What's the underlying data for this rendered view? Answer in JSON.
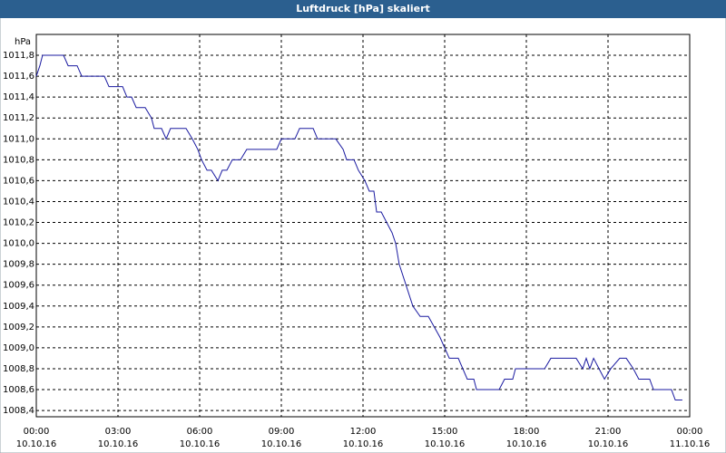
{
  "chart_data": {
    "type": "line",
    "title": "Luftdruck [hPa] skaliert",
    "ylabel": "hPa",
    "xlim": [
      0,
      24
    ],
    "ylim": [
      1008.34,
      1012.0
    ],
    "grid": true,
    "xticks": [
      {
        "value": 0,
        "label": "00:00"
      },
      {
        "value": 3,
        "label": "03:00"
      },
      {
        "value": 6,
        "label": "06:00"
      },
      {
        "value": 9,
        "label": "09:00"
      },
      {
        "value": 12,
        "label": "12:00"
      },
      {
        "value": 15,
        "label": "15:00"
      },
      {
        "value": 18,
        "label": "18:00"
      },
      {
        "value": 21,
        "label": "21:00"
      },
      {
        "value": 24,
        "label": "00:00"
      }
    ],
    "xtick_dates": [
      "10.10.16",
      "10.10.16",
      "10.10.16",
      "10.10.16",
      "10.10.16",
      "10.10.16",
      "10.10.16",
      "10.10.16",
      "11.10.16"
    ],
    "yticks": [
      {
        "value": 1008.4,
        "label": "1008,4"
      },
      {
        "value": 1008.6,
        "label": "1008,6"
      },
      {
        "value": 1008.8,
        "label": "1008,8"
      },
      {
        "value": 1009.0,
        "label": "1009,0"
      },
      {
        "value": 1009.2,
        "label": "1009,2"
      },
      {
        "value": 1009.4,
        "label": "1009,4"
      },
      {
        "value": 1009.6,
        "label": "1009,6"
      },
      {
        "value": 1009.8,
        "label": "1009,8"
      },
      {
        "value": 1010.0,
        "label": "1010,0"
      },
      {
        "value": 1010.2,
        "label": "1010,2"
      },
      {
        "value": 1010.4,
        "label": "1010,4"
      },
      {
        "value": 1010.6,
        "label": "1010,6"
      },
      {
        "value": 1010.8,
        "label": "1010,8"
      },
      {
        "value": 1011.0,
        "label": "1011,0"
      },
      {
        "value": 1011.2,
        "label": "1011,2"
      },
      {
        "value": 1011.4,
        "label": "1011,4"
      },
      {
        "value": 1011.6,
        "label": "1011,6"
      },
      {
        "value": 1011.8,
        "label": "1011,8"
      }
    ],
    "x": [
      0,
      0.13,
      0.23,
      1.0,
      1.17,
      1.5,
      1.67,
      2.5,
      2.67,
      3.17,
      3.33,
      3.5,
      3.67,
      4.0,
      4.23,
      4.33,
      4.6,
      4.77,
      4.93,
      5.5,
      5.73,
      5.93,
      6.07,
      6.27,
      6.43,
      6.67,
      6.83,
      7.0,
      7.2,
      7.5,
      7.73,
      8.83,
      9.0,
      9.5,
      9.67,
      10.17,
      10.33,
      11.0,
      11.27,
      11.4,
      11.67,
      11.83,
      12.07,
      12.23,
      12.4,
      12.5,
      12.67,
      13.07,
      13.2,
      13.33,
      13.83,
      14.1,
      14.4,
      14.83,
      15.17,
      15.5,
      15.83,
      16.07,
      16.17,
      17.0,
      17.2,
      17.5,
      17.6,
      18.67,
      18.9,
      19.83,
      20.07,
      20.2,
      20.33,
      20.47,
      20.67,
      20.87,
      21.1,
      21.43,
      21.67,
      21.93,
      22.13,
      22.53,
      22.67,
      23.33,
      23.47,
      23.73
    ],
    "series": [
      {
        "color": "#1a1aa0",
        "values": [
          1011.6,
          1011.7,
          1011.8,
          1011.8,
          1011.7,
          1011.7,
          1011.6,
          1011.6,
          1011.5,
          1011.5,
          1011.4,
          1011.4,
          1011.3,
          1011.3,
          1011.2,
          1011.1,
          1011.1,
          1011.0,
          1011.1,
          1011.1,
          1011.0,
          1010.9,
          1010.8,
          1010.7,
          1010.7,
          1010.6,
          1010.7,
          1010.7,
          1010.8,
          1010.8,
          1010.9,
          1010.9,
          1011.0,
          1011.0,
          1011.1,
          1011.1,
          1011.0,
          1011.0,
          1010.9,
          1010.8,
          1010.8,
          1010.7,
          1010.6,
          1010.5,
          1010.5,
          1010.3,
          1010.3,
          1010.1,
          1010.0,
          1009.8,
          1009.4,
          1009.3,
          1009.3,
          1009.1,
          1008.9,
          1008.9,
          1008.7,
          1008.7,
          1008.6,
          1008.6,
          1008.7,
          1008.7,
          1008.8,
          1008.8,
          1008.9,
          1008.9,
          1008.8,
          1008.9,
          1008.8,
          1008.9,
          1008.8,
          1008.7,
          1008.8,
          1008.9,
          1008.9,
          1008.8,
          1008.7,
          1008.7,
          1008.6,
          1008.6,
          1008.5,
          1008.5
        ]
      }
    ]
  }
}
